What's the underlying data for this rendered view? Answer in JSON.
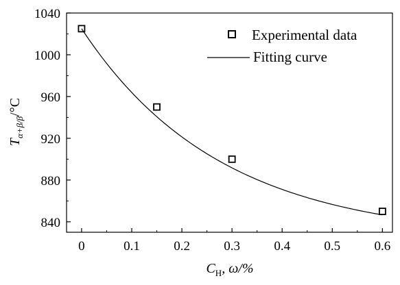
{
  "chart_data": {
    "type": "scatter",
    "x_ticks": [
      "0",
      "0.1",
      "0.2",
      "0.3",
      "0.4",
      "0.5",
      "0.6"
    ],
    "y_ticks": [
      "840",
      "880",
      "920",
      "960",
      "1000",
      "1040"
    ],
    "xlim": [
      -0.03,
      0.62
    ],
    "ylim": [
      830,
      1040
    ],
    "grid": false,
    "legend_position": "top-right",
    "series": [
      {
        "name": "Experimental data",
        "kind": "markers",
        "marker": "open-square",
        "x": [
          0,
          0.15,
          0.3,
          0.6
        ],
        "y": [
          1025,
          950,
          900,
          850
        ]
      },
      {
        "name": "Fitting curve",
        "kind": "line",
        "model": {
          "form": "y0 + A*exp(-x/t)",
          "y0": 823.6,
          "A": 201.4,
          "t": 0.2766
        },
        "x_range": [
          0,
          0.6
        ]
      }
    ],
    "xlabel": {
      "main": "C",
      "sub": "H",
      "rest": ", ω/%"
    },
    "ylabel": {
      "main": "T",
      "sub": "α+β/β",
      "rest": "/°C"
    }
  },
  "colors": {
    "axis": "#000000",
    "marker": "#000000",
    "curve": "#000000"
  }
}
